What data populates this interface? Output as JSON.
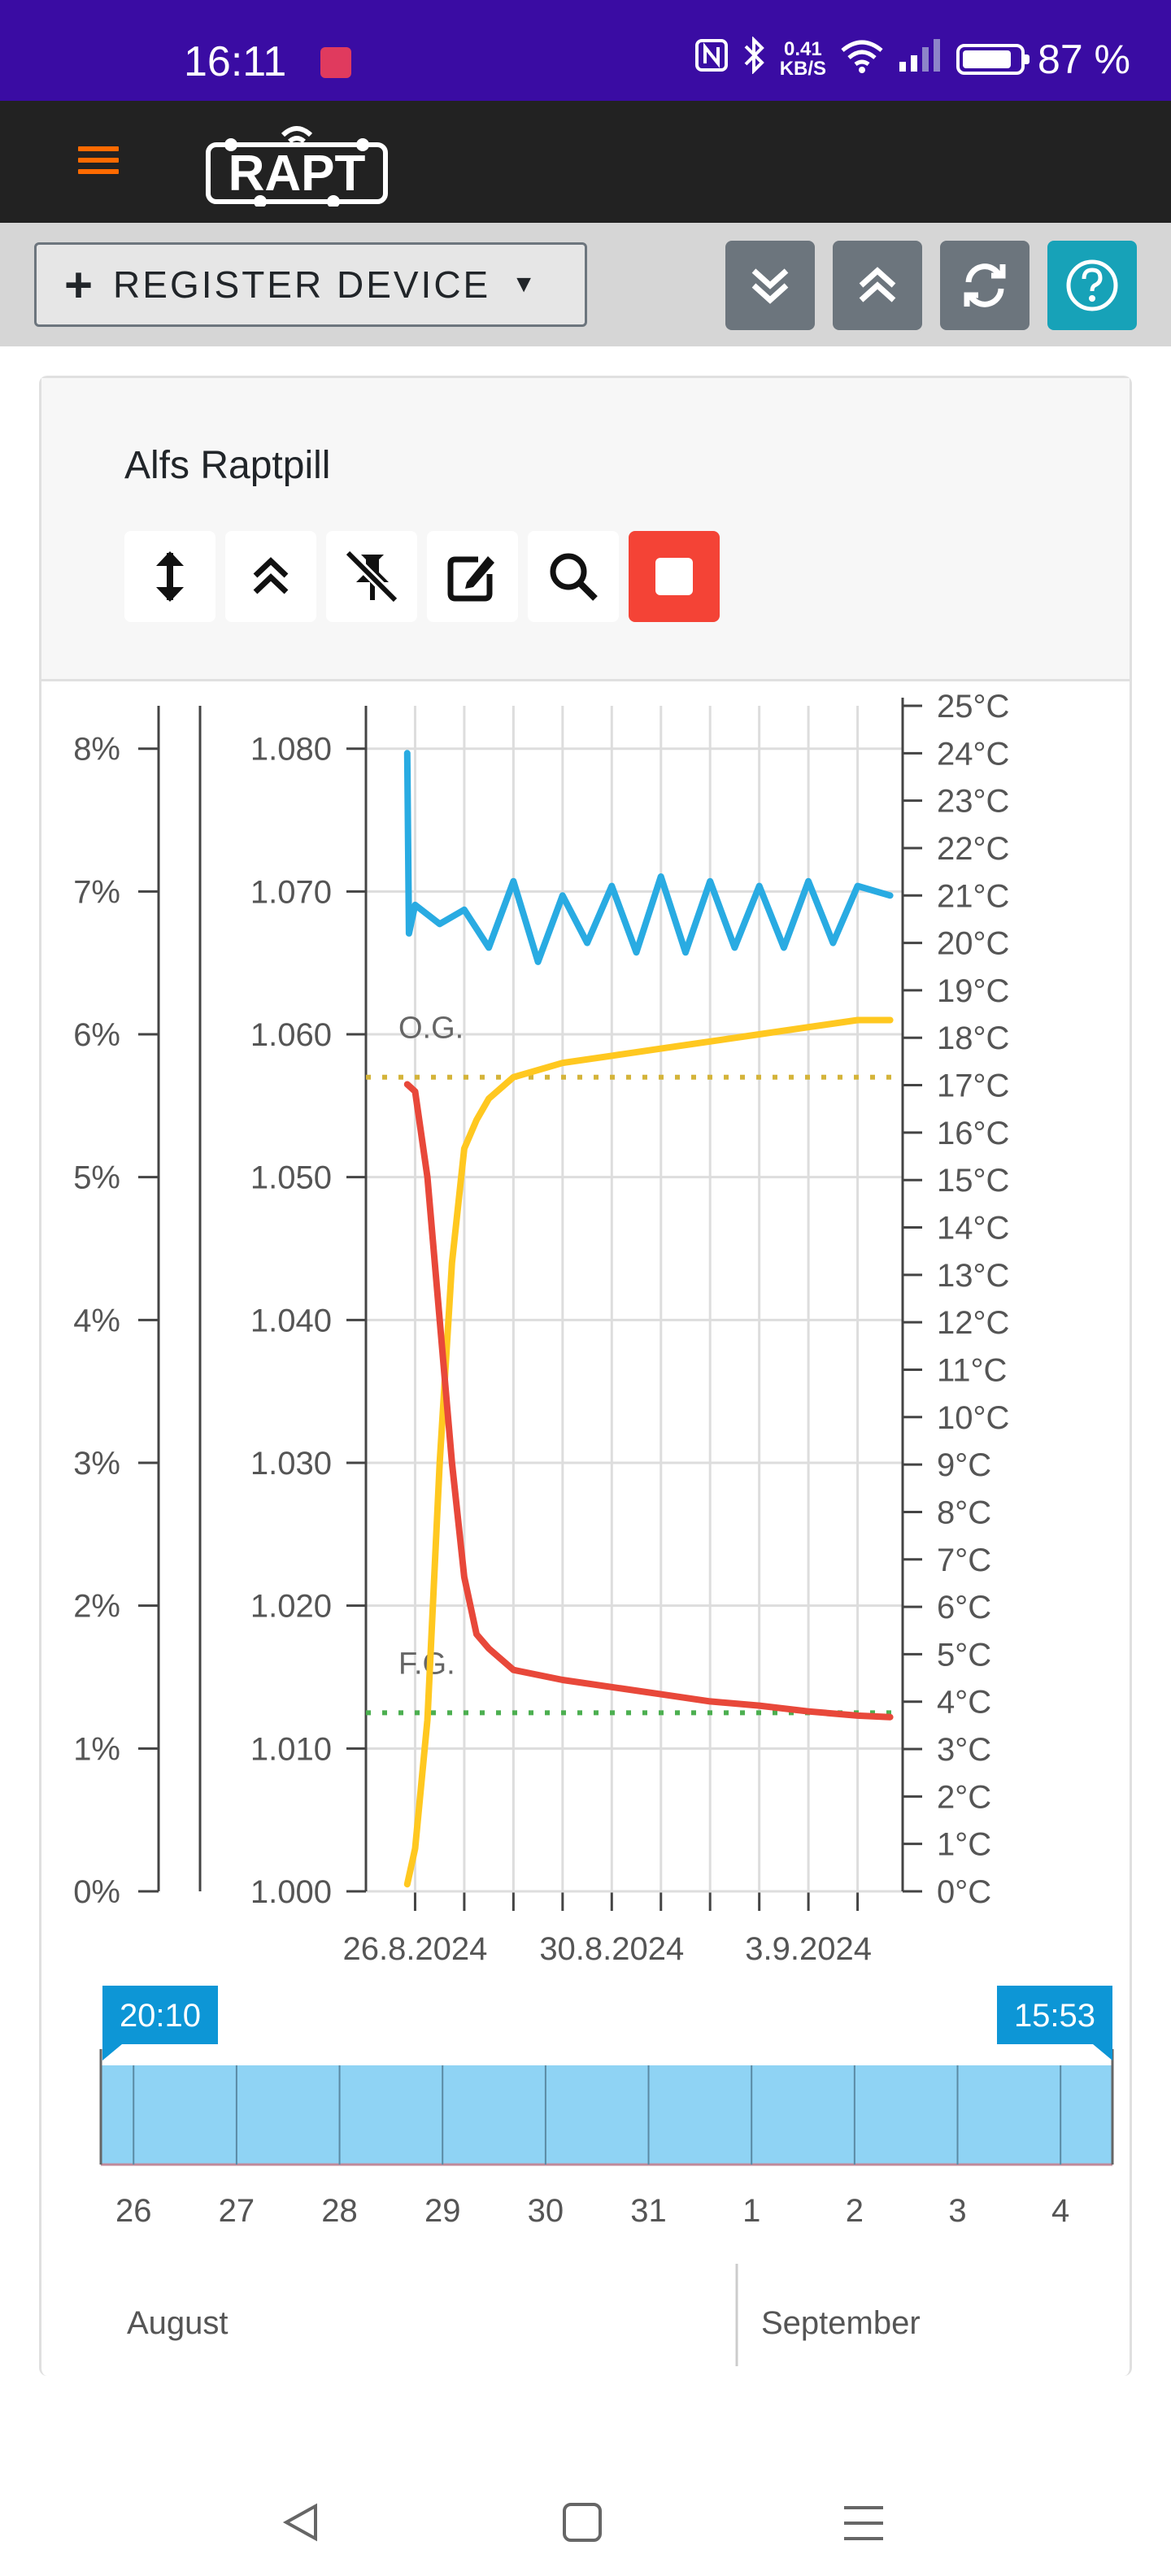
{
  "status_bar": {
    "time": "16:11",
    "net_speed_value": "0.41",
    "net_speed_unit": "KB/S",
    "battery": "87 %",
    "battery_level": 0.87
  },
  "navbar": {
    "brand": "RAPT"
  },
  "toolbar": {
    "register_label": "REGISTER DEVICE"
  },
  "device": {
    "name": "Alfs Raptpill"
  },
  "chart_data": [
    {
      "type": "line",
      "x_axis": {
        "tick_labels": [
          "26.8.2024",
          "30.8.2024",
          "3.9.2024"
        ],
        "range": [
          "2024-08-25",
          "2024-09-04"
        ]
      },
      "y_axis_abv": {
        "tick_labels": [
          "0%",
          "1%",
          "2%",
          "3%",
          "4%",
          "5%",
          "6%",
          "7%",
          "8%"
        ],
        "range": [
          0,
          8.3
        ]
      },
      "y_axis_gravity": {
        "tick_labels": [
          "1.000",
          "1.010",
          "1.020",
          "1.030",
          "1.040",
          "1.050",
          "1.060",
          "1.070",
          "1.080"
        ],
        "range": [
          1.0,
          1.083
        ]
      },
      "y_axis_temperature": {
        "tick_labels": [
          "0°C",
          "1°C",
          "2°C",
          "3°C",
          "4°C",
          "5°C",
          "6°C",
          "7°C",
          "8°C",
          "9°C",
          "10°C",
          "11°C",
          "12°C",
          "13°C",
          "14°C",
          "15°C",
          "16°C",
          "17°C",
          "18°C",
          "19°C",
          "20°C",
          "21°C",
          "22°C",
          "23°C",
          "24°C",
          "25°C"
        ],
        "range": [
          0,
          25
        ]
      },
      "annotations": [
        {
          "label": "O.G.",
          "gravity": 1.057,
          "color": "#d4b43a"
        },
        {
          "label": "F.G.",
          "gravity": 1.0125,
          "color": "#4caf50"
        }
      ],
      "series": [
        {
          "color": "#29abe2",
          "axis": "temperature",
          "x": [
            "2024-08-25T20:10",
            "2024-08-25T21:00",
            "2024-08-26T00:00",
            "2024-08-26T12:00",
            "2024-08-27T00:00",
            "2024-08-27T12:00",
            "2024-08-28T00:00",
            "2024-08-28T12:00",
            "2024-08-29T00:00",
            "2024-08-29T12:00",
            "2024-08-30T00:00",
            "2024-08-30T12:00",
            "2024-08-31T00:00",
            "2024-08-31T12:00",
            "2024-09-01T00:00",
            "2024-09-01T12:00",
            "2024-09-02T00:00",
            "2024-09-02T12:00",
            "2024-09-03T00:00",
            "2024-09-03T12:00",
            "2024-09-04T00:00",
            "2024-09-04T15:53"
          ],
          "y": [
            24.0,
            20.2,
            20.8,
            20.4,
            20.7,
            19.9,
            21.3,
            19.6,
            21.0,
            20.0,
            21.2,
            19.8,
            21.4,
            19.8,
            21.3,
            19.9,
            21.2,
            19.9,
            21.3,
            20.0,
            21.2,
            21.0
          ]
        },
        {
          "color": "#ffc820",
          "axis": "abv",
          "x": [
            "2024-08-25T20:10",
            "2024-08-26T00:00",
            "2024-08-26T06:00",
            "2024-08-26T12:00",
            "2024-08-26T18:00",
            "2024-08-27T00:00",
            "2024-08-27T06:00",
            "2024-08-27T12:00",
            "2024-08-28T00:00",
            "2024-08-29T00:00",
            "2024-08-30T00:00",
            "2024-08-31T00:00",
            "2024-09-01T00:00",
            "2024-09-02T00:00",
            "2024-09-03T00:00",
            "2024-09-04T00:00",
            "2024-09-04T15:53"
          ],
          "y": [
            0.05,
            0.3,
            1.2,
            3.0,
            4.4,
            5.2,
            5.4,
            5.55,
            5.7,
            5.8,
            5.85,
            5.9,
            5.95,
            6.0,
            6.05,
            6.1,
            6.1
          ]
        },
        {
          "color": "#e8483a",
          "axis": "gravity",
          "x": [
            "2024-08-25T20:10",
            "2024-08-26T00:00",
            "2024-08-26T06:00",
            "2024-08-26T12:00",
            "2024-08-26T18:00",
            "2024-08-27T00:00",
            "2024-08-27T06:00",
            "2024-08-27T12:00",
            "2024-08-28T00:00",
            "2024-08-29T00:00",
            "2024-08-30T00:00",
            "2024-08-31T00:00",
            "2024-09-01T00:00",
            "2024-09-02T00:00",
            "2024-09-03T00:00",
            "2024-09-04T00:00",
            "2024-09-04T15:53"
          ],
          "y": [
            1.0565,
            1.056,
            1.05,
            1.04,
            1.03,
            1.022,
            1.018,
            1.017,
            1.0155,
            1.0148,
            1.0143,
            1.0138,
            1.0133,
            1.013,
            1.0126,
            1.0123,
            1.0122
          ]
        }
      ]
    },
    {
      "type": "area",
      "role": "range-selector",
      "range_start_label": "20:10",
      "range_end_label": "15:53",
      "day_labels": [
        "26",
        "27",
        "28",
        "29",
        "30",
        "31",
        "1",
        "2",
        "3",
        "4"
      ],
      "month_labels": [
        "August",
        "September"
      ],
      "color": "#8fd3f4"
    }
  ]
}
